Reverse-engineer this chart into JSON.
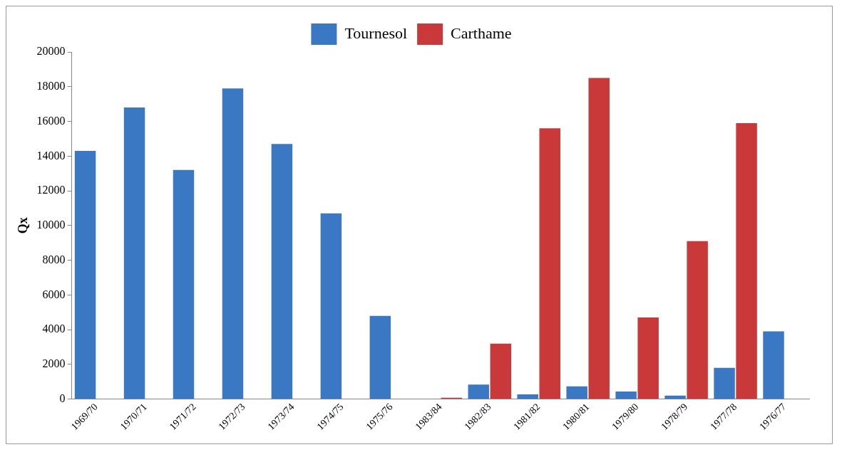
{
  "chart_data": {
    "type": "bar",
    "ylabel": "Qx",
    "categories": [
      "1969/70",
      "1970/71",
      "1971/72",
      "1972/73",
      "1973/74",
      "1974/75",
      "1975/76",
      "1983/84",
      "1982/83",
      "1981/82",
      "1980/81",
      "1979/80",
      "1978/79",
      "1977/78",
      "1976/77"
    ],
    "series": [
      {
        "name": "Tournesol",
        "color": "#3a78c4",
        "values": [
          14300,
          16800,
          13200,
          17900,
          14700,
          10700,
          4800,
          null,
          840,
          270,
          740,
          440,
          200,
          1800,
          3900
        ]
      },
      {
        "name": "Carthame",
        "color": "#c9393a",
        "values": [
          null,
          null,
          null,
          null,
          null,
          null,
          null,
          80,
          3200,
          15600,
          18500,
          4700,
          9100,
          15900,
          null
        ]
      }
    ],
    "ylim": [
      0,
      20000
    ],
    "yticks": [
      0,
      2000,
      4000,
      6000,
      8000,
      10000,
      12000,
      14000,
      16000,
      18000,
      20000
    ],
    "grid": false,
    "legend": "top"
  }
}
